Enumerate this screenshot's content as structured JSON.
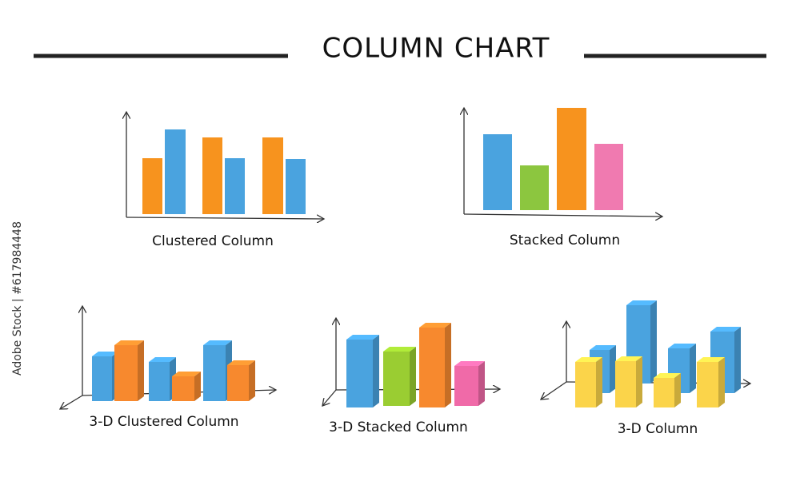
{
  "header": {
    "title": "COLUMN CHART"
  },
  "captions": [
    "Clustered Column",
    "Stacked Column",
    "3-D Clustered Column",
    "3-D Stacked Column",
    "3-D Column"
  ],
  "watermark": "Adobe Stock | #617984448"
}
